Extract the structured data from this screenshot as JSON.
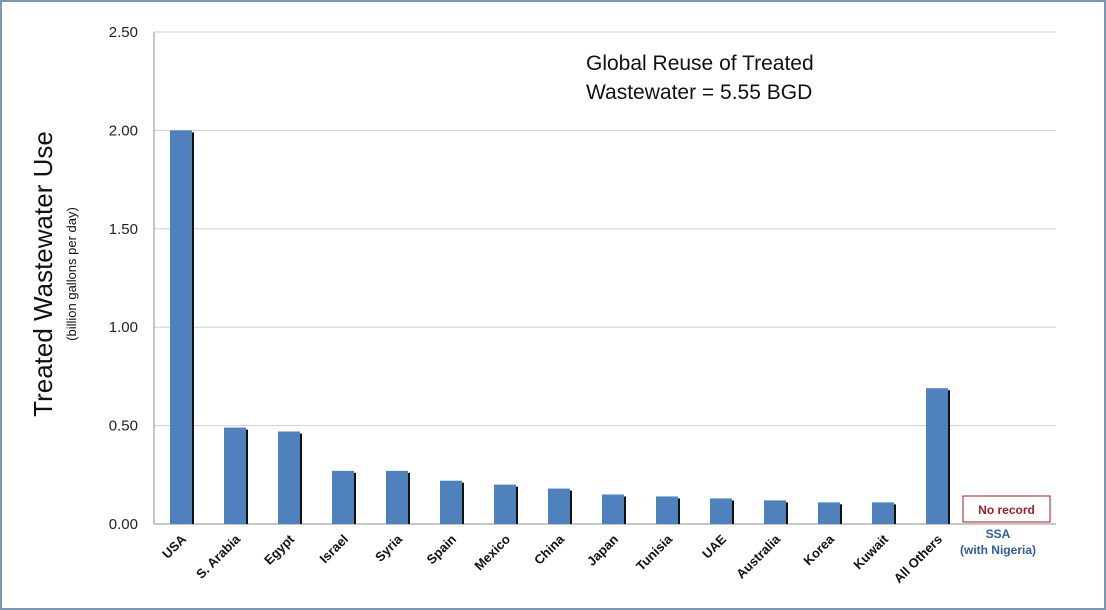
{
  "chart_data": {
    "type": "bar",
    "title_lines": [
      "Global Reuse of Treated",
      "Wastewater  = 5.55 BGD"
    ],
    "ylabel": "Treated Wastewater Use",
    "ylabel_sub": "(billion gallons per day)",
    "xlabel": "",
    "ylim": [
      0,
      2.5
    ],
    "yticks": [
      "0.00",
      "0.50",
      "1.00",
      "1.50",
      "2.00",
      "2.50"
    ],
    "grid": true,
    "categories": [
      "USA",
      "S. Arabia",
      "Egypt",
      "Israel",
      "Syria",
      "Spain",
      "Mexico",
      "China",
      "Japan",
      "Tunisia",
      "UAE",
      "Australia",
      "Korea",
      "Kuwait",
      "All Others"
    ],
    "values": [
      2.0,
      0.49,
      0.47,
      0.27,
      0.27,
      0.22,
      0.2,
      0.18,
      0.15,
      0.14,
      0.13,
      0.12,
      0.11,
      0.11,
      0.69
    ],
    "extra_category": {
      "label_lines": [
        "SSA",
        "(with Nigeria)"
      ],
      "value_note": "No record"
    },
    "colors": {
      "bar": "#4f81bd",
      "bar_shadow": "#111111",
      "grid": "#cfcfcf",
      "axis": "#8c8c8c",
      "ssa_label": "#2e5c9e",
      "no_record": "#a01e28"
    }
  }
}
